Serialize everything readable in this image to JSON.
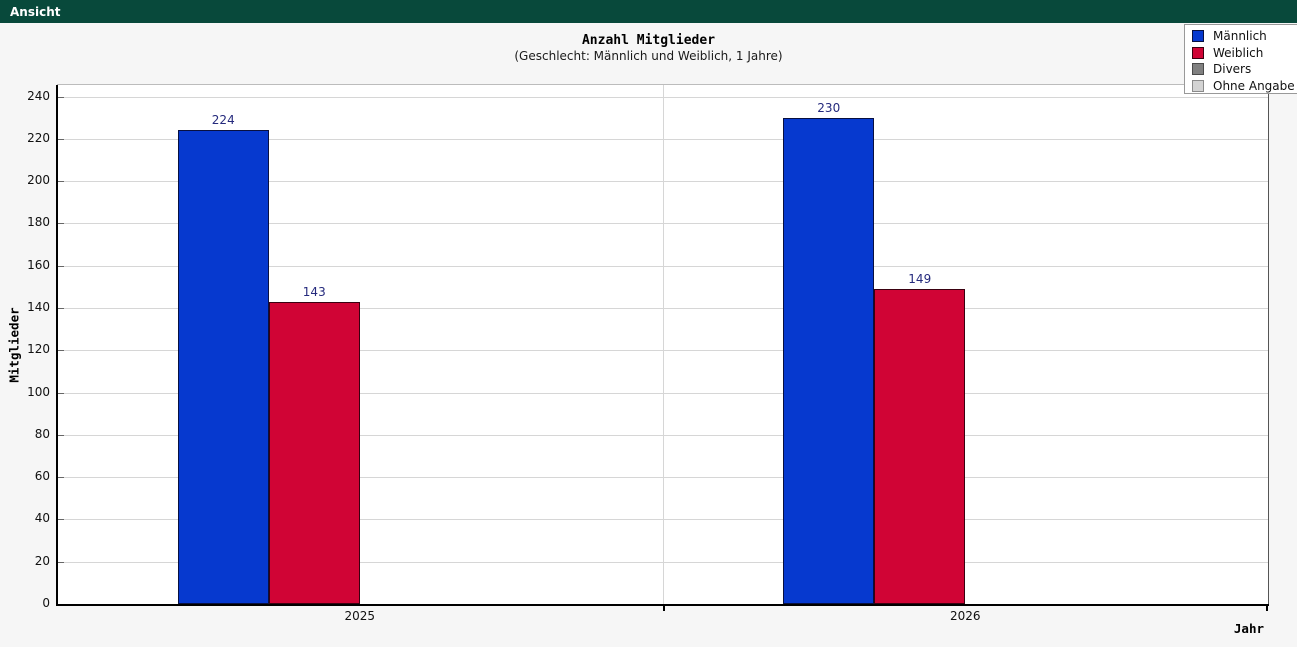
{
  "menu_bar": {
    "items": [
      {
        "label": "Ansicht"
      }
    ]
  },
  "colors": {
    "menubar_bg": "#08493b",
    "page_bg": "#f6f6f6",
    "plot_bg": "#ffffff",
    "grid": "#d6d6d6",
    "tick": "#666666",
    "value_label": "#252a7d"
  },
  "chart_data": {
    "type": "bar",
    "title": "Anzahl Mitglieder",
    "subtitle": "(Geschlecht: Männlich und Weiblich, 1 Jahre)",
    "xlabel": "Jahr",
    "ylabel": "Mitglieder",
    "categories": [
      "2025",
      "2026"
    ],
    "series": [
      {
        "name": "Männlich",
        "color": "#0639cf",
        "border_color": "#081040",
        "values": [
          224,
          230
        ]
      },
      {
        "name": "Weiblich",
        "color": "#d00435",
        "border_color": "#3a0010",
        "values": [
          143,
          149
        ]
      },
      {
        "name": "Divers",
        "color": "#808080",
        "border_color": "#4a4a4a",
        "values": [
          null,
          null
        ]
      },
      {
        "name": "Ohne Angabe",
        "color": "#d3d3d3",
        "border_color": "#8a8a8a",
        "values": [
          null,
          null
        ]
      }
    ],
    "ylim": [
      0,
      245.5
    ],
    "yticks": [
      0,
      20,
      40,
      60,
      80,
      100,
      120,
      140,
      160,
      180,
      200,
      220,
      240
    ],
    "grid": true,
    "legend_position": "top-right",
    "bar_value_labels": true
  }
}
